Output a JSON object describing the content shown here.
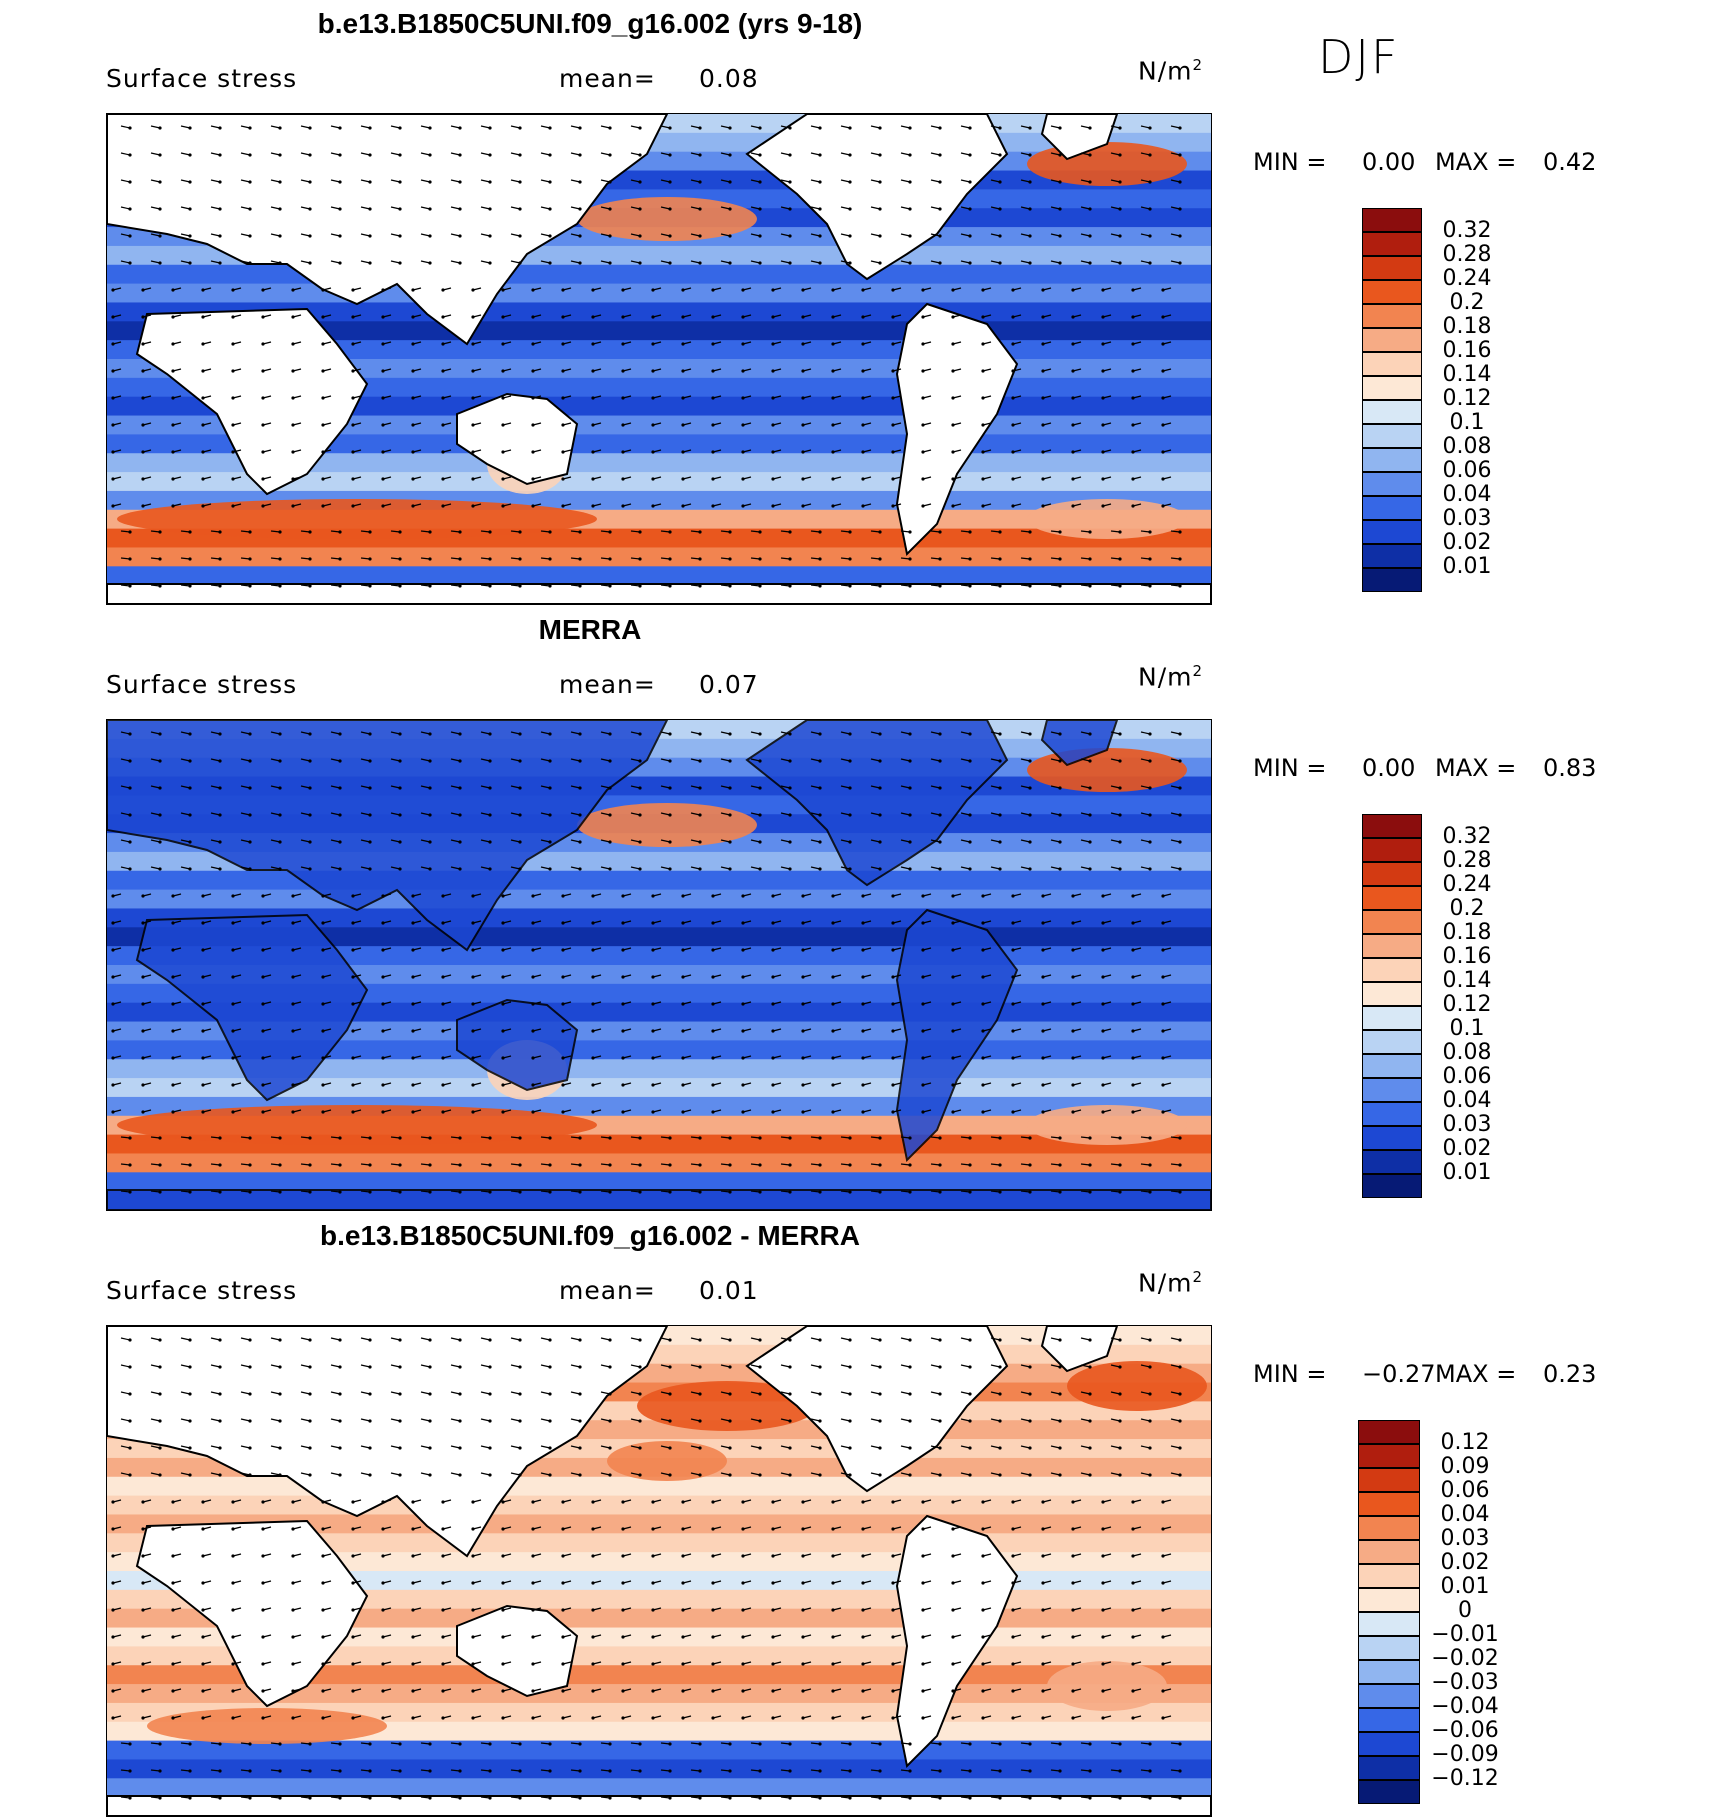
{
  "season": "DJF",
  "panels": [
    {
      "title": "b.e13.B1850C5UNI.f09_g16.002 (yrs 9-18)",
      "variable": "Surface stress",
      "mean_label": "mean=",
      "mean_value": "0.08",
      "units": "N/m",
      "units_sup": "2",
      "min_label": "MIN =",
      "min_value": "0.00",
      "max_label": "MAX =",
      "max_value": "0.42",
      "colorbar": {
        "ticks": [
          "0.32",
          "0.28",
          "0.24",
          "0.2",
          "0.18",
          "0.16",
          "0.14",
          "0.12",
          "0.1",
          "0.08",
          "0.06",
          "0.04",
          "0.03",
          "0.02",
          "0.01"
        ],
        "colors": [
          "#8b0d0d",
          "#b01e0e",
          "#d33a12",
          "#e9571e",
          "#f28450",
          "#f6ab85",
          "#fcd3b8",
          "#fde8d6",
          "#d8e8f6",
          "#b9d3f3",
          "#90b5f0",
          "#5f8cec",
          "#3667e6",
          "#1d48d3",
          "#0e2fa6",
          "#061a75"
        ]
      },
      "map_colors": {
        "ocean_base": "#3667e6",
        "land": "#ffffff"
      }
    },
    {
      "title": "MERRA",
      "variable": "Surface stress",
      "mean_label": "mean=",
      "mean_value": "0.07",
      "units": "N/m",
      "units_sup": "2",
      "min_label": "MIN =",
      "min_value": "0.00",
      "max_label": "MAX =",
      "max_value": "0.83",
      "colorbar": {
        "ticks": [
          "0.32",
          "0.28",
          "0.24",
          "0.2",
          "0.18",
          "0.16",
          "0.14",
          "0.12",
          "0.1",
          "0.08",
          "0.06",
          "0.04",
          "0.03",
          "0.02",
          "0.01"
        ],
        "colors": [
          "#8b0d0d",
          "#b01e0e",
          "#d33a12",
          "#e9571e",
          "#f28450",
          "#f6ab85",
          "#fcd3b8",
          "#fde8d6",
          "#d8e8f6",
          "#b9d3f3",
          "#90b5f0",
          "#5f8cec",
          "#3667e6",
          "#1d48d3",
          "#0e2fa6",
          "#061a75"
        ]
      },
      "map_colors": {
        "ocean_base": "#2f5fe2",
        "land": "#1d48d3"
      }
    },
    {
      "title": "b.e13.B1850C5UNI.f09_g16.002 - MERRA",
      "variable": "Surface stress",
      "mean_label": "mean=",
      "mean_value": "0.01",
      "units": "N/m",
      "units_sup": "2",
      "min_label": "MIN =",
      "min_value": "−0.27",
      "max_label": "MAX =",
      "max_value": "0.23",
      "colorbar": {
        "ticks": [
          "0.12",
          "0.09",
          "0.06",
          "0.04",
          "0.03",
          "0.02",
          "0.01",
          "0",
          "−0.01",
          "−0.02",
          "−0.03",
          "−0.04",
          "−0.06",
          "−0.09",
          "−0.12"
        ],
        "colors": [
          "#8b0d0d",
          "#b01e0e",
          "#d33a12",
          "#e9571e",
          "#f28450",
          "#f6ab85",
          "#fcd3b8",
          "#fde8d6",
          "#d8e8f6",
          "#b9d3f3",
          "#90b5f0",
          "#5f8cec",
          "#3667e6",
          "#1d48d3",
          "#0e2fa6",
          "#061a75"
        ]
      },
      "map_colors": {
        "ocean_base": "#fcd3b8",
        "land": "#ffffff"
      }
    }
  ]
}
